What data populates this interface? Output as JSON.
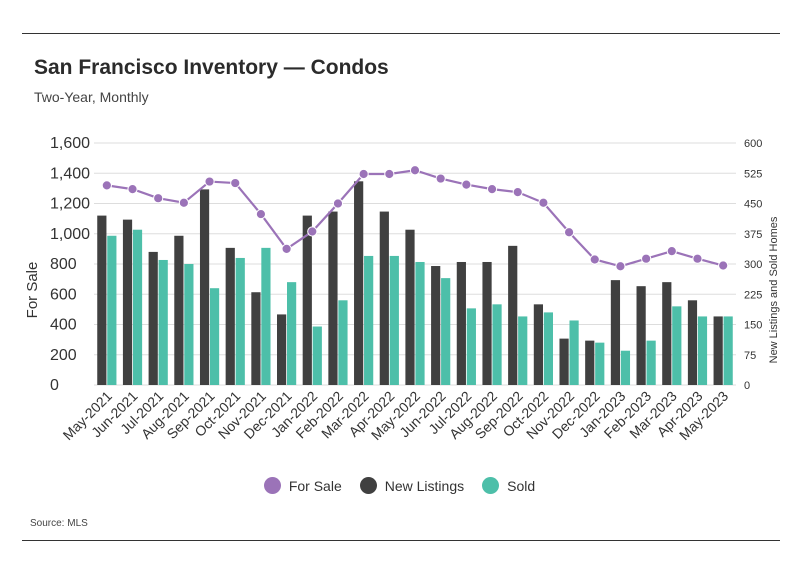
{
  "header": {
    "title": "San Francisco Inventory — Condos",
    "subtitle": "Two-Year, Monthly"
  },
  "footer": {
    "source": "Source:  MLS"
  },
  "colors": {
    "for_sale": "#9b73b8",
    "new_listings": "#404040",
    "sold": "#4dbfa9",
    "grid": "#dddddd",
    "text": "#333333"
  },
  "chart_data": {
    "type": "bar",
    "categories": [
      "May-2021",
      "Jun-2021",
      "Jul-2021",
      "Aug-2021",
      "Sep-2021",
      "Oct-2021",
      "Nov-2021",
      "Dec-2021",
      "Jan-2022",
      "Feb-2022",
      "Mar-2022",
      "Apr-2022",
      "May-2022",
      "Jun-2022",
      "Jul-2022",
      "Aug-2022",
      "Sep-2022",
      "Oct-2022",
      "Nov-2022",
      "Dec-2022",
      "Jan-2023",
      "Feb-2023",
      "Mar-2023",
      "Apr-2023",
      "May-2023"
    ],
    "ylabel": "For Sale",
    "ylabel_right": "New Listings and Sold Homes",
    "ylim": [
      0,
      1600
    ],
    "yticks": [
      "0",
      "200",
      "400",
      "600",
      "800",
      "1,000",
      "1,200",
      "1,400",
      "1,600"
    ],
    "ylim_right": [
      0,
      600
    ],
    "yticks_right": [
      "0",
      "75",
      "150",
      "225",
      "300",
      "375",
      "450",
      "525",
      "600"
    ],
    "grid": true,
    "legend": "bottom-center",
    "legend_labels": {
      "for_sale": "For Sale",
      "new_listings": "New Listings",
      "sold": "Sold"
    },
    "series": [
      {
        "name": "For Sale",
        "type": "line",
        "axis": "left",
        "values": [
          1320,
          1295,
          1235,
          1205,
          1345,
          1335,
          1130,
          900,
          1015,
          1200,
          1395,
          1395,
          1420,
          1365,
          1325,
          1295,
          1275,
          1205,
          1010,
          830,
          785,
          835,
          885,
          835,
          790
        ]
      },
      {
        "name": "New Listings",
        "type": "bar",
        "axis": "right",
        "values": [
          420,
          410,
          330,
          370,
          485,
          340,
          230,
          175,
          420,
          430,
          505,
          430,
          385,
          295,
          305,
          305,
          345,
          200,
          115,
          110,
          260,
          245,
          255,
          210,
          170
        ]
      },
      {
        "name": "Sold",
        "type": "bar",
        "axis": "right",
        "values": [
          370,
          385,
          310,
          300,
          240,
          315,
          340,
          255,
          145,
          210,
          320,
          320,
          305,
          265,
          190,
          200,
          170,
          180,
          160,
          105,
          85,
          110,
          195,
          170,
          170
        ]
      }
    ]
  }
}
